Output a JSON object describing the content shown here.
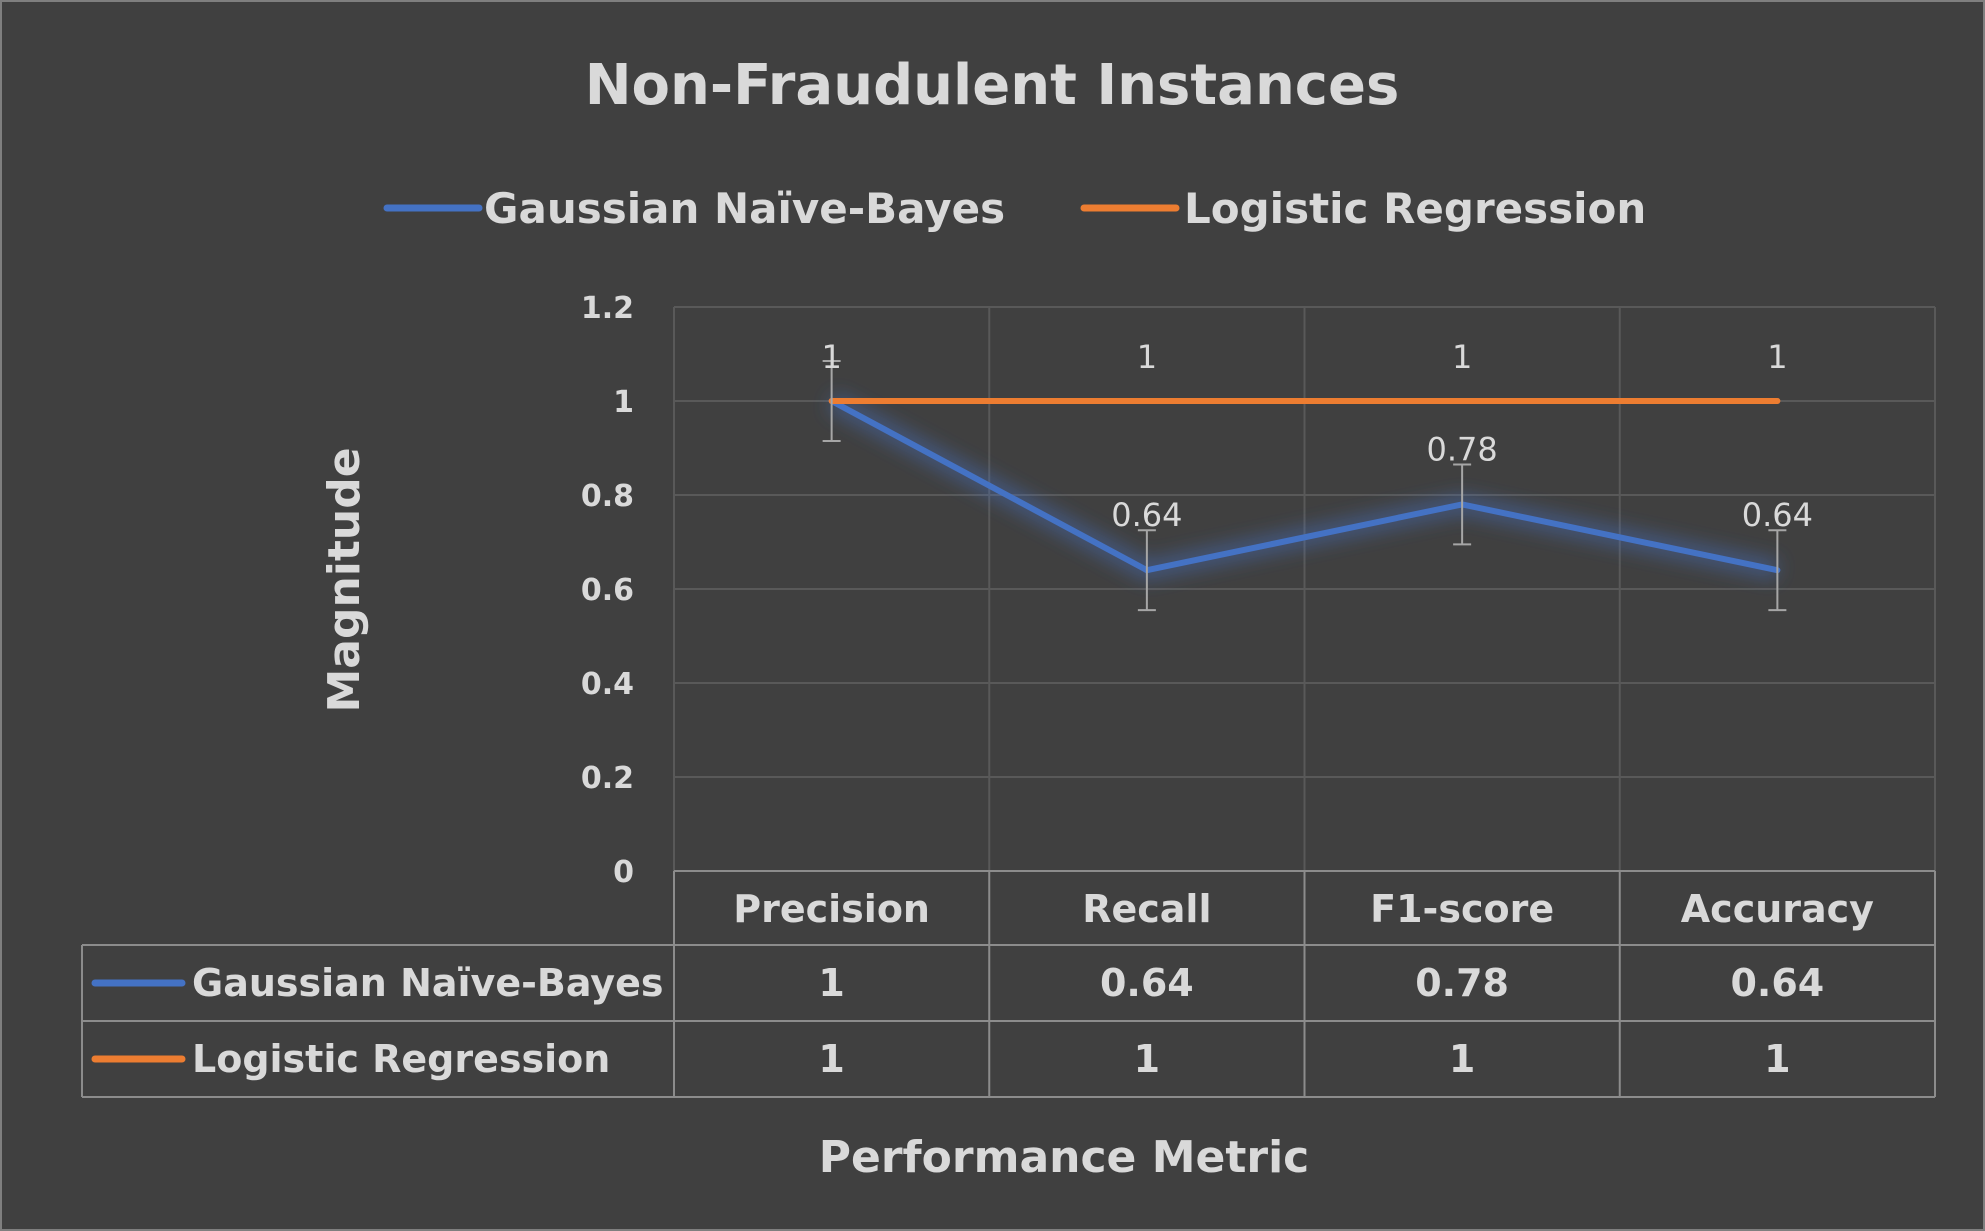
{
  "chart_data": {
    "type": "line",
    "title": "Non-Fraudulent Instances",
    "xlabel": "Performance Metric",
    "ylabel": "Magnitude",
    "categories": [
      "Precision",
      "Recall",
      "F1-score",
      "Accuracy"
    ],
    "ylim": [
      0,
      1.2
    ],
    "yticks": [
      "0",
      "0.2",
      "0.4",
      "0.6",
      "0.8",
      "1",
      "1.2"
    ],
    "ytick_values": [
      0,
      0.2,
      0.4,
      0.6,
      0.8,
      1,
      1.2
    ],
    "grid": true,
    "legend_position": "top",
    "has_data_table": true,
    "error_bars": true,
    "series": [
      {
        "name": "Gaussian Naïve-Bayes",
        "color": "#4472c4",
        "values": [
          1,
          0.64,
          0.78,
          0.64
        ],
        "labels": [
          "1",
          "0.64",
          "0.78",
          "0.64"
        ]
      },
      {
        "name": "Logistic Regression",
        "color": "#ed7d31",
        "values": [
          1,
          1,
          1,
          1
        ],
        "labels": [
          "1",
          "1",
          "1",
          "1"
        ]
      }
    ]
  }
}
